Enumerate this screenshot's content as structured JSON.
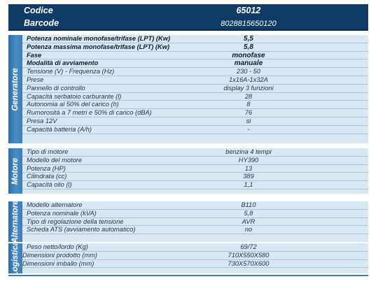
{
  "header": {
    "code_label": "Codice",
    "code_value": "65012",
    "barcode_label": "Barcode",
    "barcode_value": "8028815650120"
  },
  "sections": {
    "generatore": {
      "title": "Generatore",
      "rows": [
        {
          "k": "Potenza nominale monofase/trifase (LPT) (Kw)",
          "v": "5,5",
          "bold": true
        },
        {
          "k": "Potenza massima monofase/trifase (LPT) (Kw)",
          "v": "5,8",
          "bold": true
        },
        {
          "k": "Fase",
          "v": "monofase",
          "bold": true
        },
        {
          "k": "Modalità di avviamento",
          "v": "manuale",
          "bold": true
        },
        {
          "k": "Tensione (V) - Frequenza (Hz)",
          "v": "230 - 50"
        },
        {
          "k": "Prese",
          "v": "1x16A-1x32A"
        },
        {
          "k": "Pannello di controllo",
          "v": "display 3 funzioni"
        },
        {
          "k": "Capacità serbatoio carburante (l)",
          "v": "28"
        },
        {
          "k": "Autonomia al 50% del carico (h)",
          "v": "8"
        },
        {
          "k": "Rumorosità a 7 metri e 50% di carico (dBA)",
          "v": "76"
        },
        {
          "k": "Presa 12V",
          "v": "si"
        },
        {
          "k": "Capacità batteria (A/h)",
          "v": "-"
        }
      ]
    },
    "motore": {
      "title": "Motore",
      "rows": [
        {
          "k": "Tipo di motore",
          "v": "benzina 4 tempi"
        },
        {
          "k": "Modello del motore",
          "v": "HY390"
        },
        {
          "k": "Potenza (HP)",
          "v": "13"
        },
        {
          "k": "Cilindrata (cc)",
          "v": "389"
        },
        {
          "k": "Capacità olio (l)",
          "v": "1,1"
        }
      ]
    },
    "alternatore": {
      "title": "Alternatore",
      "rows": [
        {
          "k": "Modello alternatore",
          "v": "B110"
        },
        {
          "k": "Potenza nominale (kVA)",
          "v": "5,8"
        },
        {
          "k": "Tipo di regolazione della tensione",
          "v": "AVR"
        },
        {
          "k": "Scheda ATS (avviamento automatico)",
          "v": "no"
        }
      ]
    },
    "logistica": {
      "title": "Logistica",
      "rows": [
        {
          "k": "Peso netto/lordo (Kg)",
          "v": "69/72"
        },
        {
          "k": "Dimensioni prodotto (mm)",
          "v": "710X550X580"
        },
        {
          "k": "Dimensioni imballo (mm)",
          "v": "730X570X600"
        }
      ]
    }
  }
}
